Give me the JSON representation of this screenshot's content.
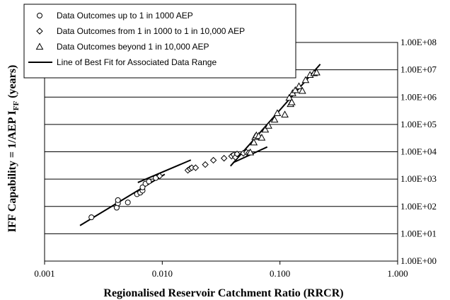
{
  "chart_data": {
    "type": "scatter",
    "xlabel": "Regionalised Reservoir Catchment Ratio (RRCR)",
    "ylabel_main": "IFF Capability = 1/AEP I",
    "ylabel_sub": "FF",
    "ylabel_tail": " (years)",
    "x_scale": "log",
    "y_scale": "log",
    "xlim": [
      0.001,
      1.0
    ],
    "ylim": [
      1,
      100000000
    ],
    "grid": "horizontal",
    "legend_position": "top-left",
    "x_ticks": [
      {
        "value": 0.001,
        "label": "0.001"
      },
      {
        "value": 0.01,
        "label": "0.010"
      },
      {
        "value": 0.1,
        "label": "0.100"
      },
      {
        "value": 1.0,
        "label": "1.000"
      }
    ],
    "y_ticks": [
      {
        "value": 1,
        "label": "1.00E+00"
      },
      {
        "value": 10,
        "label": "1.00E+01"
      },
      {
        "value": 100,
        "label": "1.00E+02"
      },
      {
        "value": 1000,
        "label": "1.00E+03"
      },
      {
        "value": 10000,
        "label": "1.00E+04"
      },
      {
        "value": 100000,
        "label": "1.00E+05"
      },
      {
        "value": 1000000,
        "label": "1.00E+06"
      },
      {
        "value": 10000000,
        "label": "1.00E+07"
      },
      {
        "value": 100000000,
        "label": "1.00E+08"
      }
    ],
    "series": [
      {
        "name": "Data Outcomes up to 1 in 1000 AEP",
        "marker": "circle",
        "points": [
          [
            0.0025,
            40
          ],
          [
            0.0041,
            90
          ],
          [
            0.0042,
            130
          ],
          [
            0.0042,
            170
          ],
          [
            0.0051,
            140
          ],
          [
            0.0061,
            280
          ],
          [
            0.0065,
            320
          ],
          [
            0.0068,
            380
          ],
          [
            0.0068,
            500
          ],
          [
            0.0072,
            680
          ],
          [
            0.0077,
            820
          ],
          [
            0.0088,
            1100
          ]
        ]
      },
      {
        "name": "Data Outcomes from 1 in 1000 to 1 in 10,000 AEP",
        "marker": "diamond",
        "points": [
          [
            0.0095,
            1300
          ],
          [
            0.0165,
            2100
          ],
          [
            0.0172,
            2400
          ],
          [
            0.0178,
            2600
          ],
          [
            0.0192,
            2600
          ],
          [
            0.0232,
            3400
          ],
          [
            0.0272,
            4900
          ],
          [
            0.0335,
            5800
          ],
          [
            0.0388,
            6900
          ],
          [
            0.0405,
            7800
          ],
          [
            0.0418,
            6300
          ],
          [
            0.0432,
            8300
          ],
          [
            0.0488,
            8800
          ],
          [
            0.052,
            9600
          ],
          [
            0.0545,
            9200
          ]
        ]
      },
      {
        "name": "Data Outcomes beyond 1 in 10,000 AEP",
        "marker": "triangle",
        "points": [
          [
            0.056,
            9500
          ],
          [
            0.06,
            22000
          ],
          [
            0.0615,
            35000
          ],
          [
            0.063,
            40000
          ],
          [
            0.066,
            38000
          ],
          [
            0.07,
            33000
          ],
          [
            0.075,
            65000
          ],
          [
            0.08,
            90000
          ],
          [
            0.09,
            150000
          ],
          [
            0.095,
            260000
          ],
          [
            0.11,
            230000
          ],
          [
            0.12,
            950000
          ],
          [
            0.123,
            560000
          ],
          [
            0.126,
            650000
          ],
          [
            0.128,
            1400000
          ],
          [
            0.135,
            1800000
          ],
          [
            0.145,
            2500000
          ],
          [
            0.155,
            1700000
          ],
          [
            0.165,
            4200000
          ],
          [
            0.18,
            6500000
          ],
          [
            0.195,
            7500000
          ],
          [
            0.205,
            8000000
          ]
        ]
      },
      {
        "name": "Line of Best Fit for Associated Data Range",
        "marker": "line",
        "segments": [
          [
            [
              0.002,
              20
            ],
            [
              0.0105,
              1500
            ]
          ],
          [
            [
              0.0062,
              750
            ],
            [
              0.0175,
              5000
            ]
          ],
          [
            [
              0.04,
              4000
            ],
            [
              0.078,
              15000
            ]
          ],
          [
            [
              0.038,
              3000
            ],
            [
              0.22,
              16000000
            ]
          ]
        ]
      }
    ]
  }
}
